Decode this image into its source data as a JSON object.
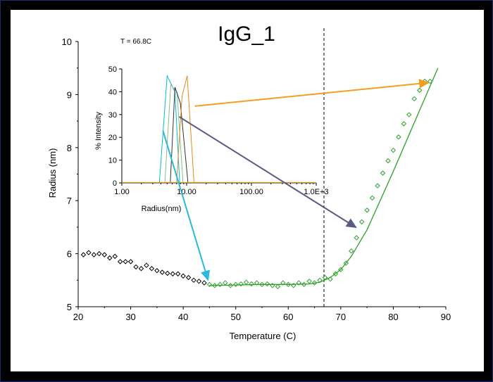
{
  "chart_data": [
    {
      "type": "scatter",
      "title": "IgG_1",
      "xlabel": "Temperature (C)",
      "ylabel": "Radius (nm)",
      "xlim": [
        20,
        90
      ],
      "ylim": [
        5,
        10
      ],
      "xticks": [
        "20",
        "30",
        "40",
        "50",
        "60",
        "70",
        "80",
        "90"
      ],
      "yticks": [
        "5",
        "6",
        "7",
        "8",
        "9",
        "10"
      ],
      "transition_temperature": 66.8,
      "series": [
        {
          "color": "#000000",
          "x": [
            21,
            22,
            23,
            24,
            25,
            26,
            27,
            28,
            29,
            30,
            31,
            32,
            33,
            34,
            35,
            36,
            37,
            38,
            39,
            40,
            41,
            42,
            43,
            44
          ],
          "y": [
            5.98,
            6.02,
            5.98,
            6.0,
            5.98,
            5.92,
            5.95,
            5.85,
            5.85,
            5.85,
            5.75,
            5.72,
            5.78,
            5.72,
            5.68,
            5.65,
            5.63,
            5.62,
            5.62,
            5.58,
            5.55,
            5.5,
            5.48,
            5.45
          ]
        },
        {
          "color": "#2ca02c",
          "x": [
            45,
            46,
            47,
            48,
            49,
            50,
            51,
            52,
            53,
            54,
            55,
            56,
            57,
            58,
            59,
            60,
            61,
            62,
            63,
            64,
            65,
            66,
            67,
            68,
            69,
            70,
            71,
            72,
            73,
            74,
            75,
            76,
            77,
            78,
            79,
            80,
            81,
            82,
            83,
            84,
            85,
            86,
            87
          ],
          "y": [
            5.42,
            5.4,
            5.42,
            5.45,
            5.4,
            5.42,
            5.43,
            5.46,
            5.43,
            5.45,
            5.42,
            5.43,
            5.4,
            5.38,
            5.45,
            5.42,
            5.4,
            5.45,
            5.42,
            5.48,
            5.45,
            5.5,
            5.55,
            5.52,
            5.62,
            5.7,
            5.82,
            6.05,
            6.3,
            6.6,
            6.82,
            7.05,
            7.28,
            7.52,
            7.75,
            7.95,
            8.2,
            8.45,
            8.62,
            8.92,
            9.08,
            9.25,
            9.25
          ]
        }
      ],
      "fit_line": {
        "color": "#2ca02c",
        "x": [
          45,
          50,
          55,
          60,
          64,
          66,
          68,
          70,
          72,
          75,
          80,
          85,
          88.5
        ],
        "y": [
          5.4,
          5.41,
          5.42,
          5.42,
          5.43,
          5.46,
          5.55,
          5.7,
          5.95,
          6.45,
          7.55,
          8.7,
          9.5
        ]
      },
      "annotation": "T = 66.8C"
    },
    {
      "type": "line",
      "xlabel": "Radius(nm)",
      "ylabel": "% Intensity",
      "xscale": "log",
      "xlim": [
        1,
        1000
      ],
      "ylim": [
        0,
        50
      ],
      "xticks": [
        "1.00",
        "10.00",
        "100.00",
        "1.0E+3"
      ],
      "yticks": [
        "0",
        "10",
        "20",
        "30",
        "40",
        "50"
      ],
      "series": [
        {
          "color": "#00bcd4",
          "x": [
            3.8,
            5.0,
            6.6,
            7.8
          ],
          "y": [
            0,
            47,
            40,
            0
          ]
        },
        {
          "color": "#8fbc8f",
          "x": [
            4.6,
            5.7,
            7.1,
            8.8
          ],
          "y": [
            0,
            43,
            40,
            0
          ]
        },
        {
          "color": "#333333",
          "x": [
            5.6,
            6.6,
            8.0,
            10.5
          ],
          "y": [
            0,
            42,
            35,
            0
          ]
        },
        {
          "color": "#e08c1a",
          "x": [
            7.0,
            8.5,
            10.2,
            13.0
          ],
          "y": [
            0,
            38,
            47,
            0
          ]
        }
      ]
    }
  ]
}
